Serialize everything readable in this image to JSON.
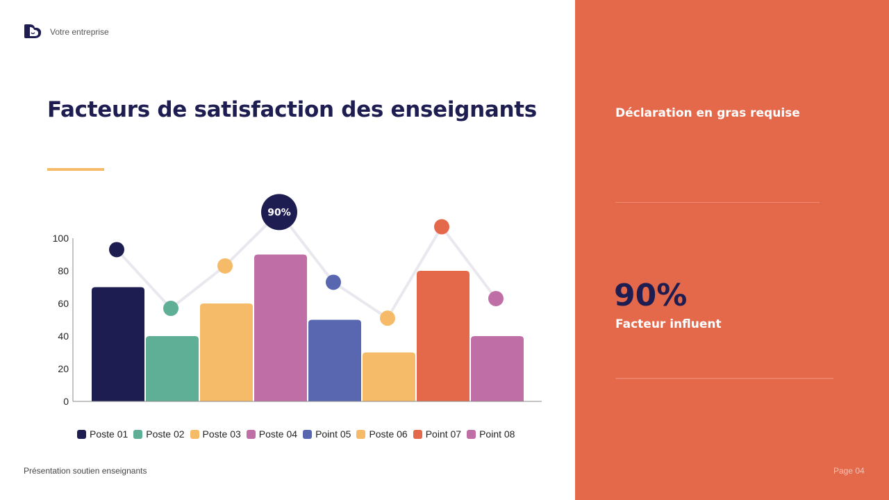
{
  "header": {
    "company": "Votre entreprise"
  },
  "title": "Facteurs de satisfaction des enseignants",
  "footer": {
    "presentation": "Présentation soutien enseignants",
    "page": "Page 04"
  },
  "side_panel": {
    "heading": "Déclaration en gras requise",
    "stat_value": "90%",
    "stat_label": "Facteur influent"
  },
  "colors": {
    "navy": "#1e1d52",
    "orange": "#e4684a",
    "yellow": "#f5bb69"
  },
  "chart_data": {
    "type": "bar",
    "categories": [
      "Poste 01",
      "Poste 02",
      "Poste 03",
      "Poste 04",
      "Point 05",
      "Poste 06",
      "Point 07",
      "Point 08"
    ],
    "colors": [
      "#1e1d52",
      "#5fae96",
      "#f5bb69",
      "#bf6fa6",
      "#5967b0",
      "#f5bb69",
      "#e4684a",
      "#bf6fa6"
    ],
    "values": [
      70,
      40,
      60,
      90,
      50,
      30,
      80,
      40
    ],
    "line_overlay": {
      "values": [
        93,
        57,
        83,
        116,
        73,
        51,
        107,
        63
      ],
      "highlight_index": 3,
      "highlight_label": "90%"
    },
    "yticks": [
      0,
      20,
      40,
      60,
      80,
      100
    ],
    "ylim": [
      0,
      100
    ],
    "legend": "bottom",
    "grid": false
  }
}
